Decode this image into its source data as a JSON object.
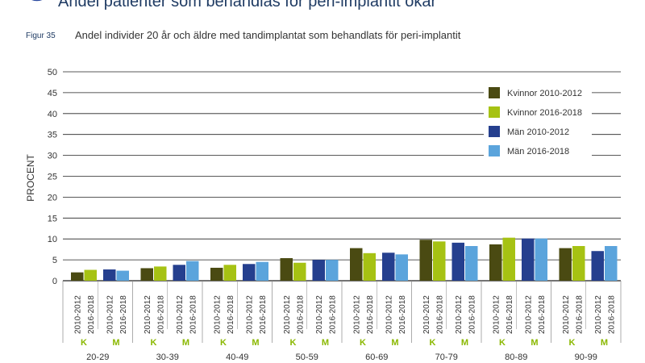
{
  "header": {
    "heading": "Andel patienter som behandlas för peri-implantit ökar",
    "figure_label": "Figur 35",
    "figure_caption": "Andel individer 20 år och äldre med tandimplantat som behandlats för peri-implantit"
  },
  "colors": {
    "axis_text": "#333333",
    "grid": "#222222",
    "group_divider": "#888888",
    "sex_label": "#8ab800",
    "title": "#1f3b63"
  },
  "chart_data": {
    "type": "bar",
    "ylabel": "PROCENT",
    "ylim": [
      0,
      50
    ],
    "y_ticks": [
      0,
      5,
      10,
      15,
      20,
      25,
      30,
      35,
      40,
      45,
      50
    ],
    "grid": true,
    "legend_position": "top-right",
    "categories": [
      "20-29",
      "30-39",
      "40-49",
      "50-59",
      "60-69",
      "70-79",
      "80-89",
      "90-99"
    ],
    "sex_labels": [
      "K",
      "M"
    ],
    "period_labels": [
      "2010-2012",
      "2016-2018"
    ],
    "series": [
      {
        "name": "Kvinnor 2010-2012",
        "color": "#4a4a12",
        "values": [
          2.0,
          3.0,
          3.1,
          5.4,
          7.8,
          9.8,
          8.7,
          7.8
        ]
      },
      {
        "name": "Kvinnor 2016-2018",
        "color": "#a6c213",
        "values": [
          2.6,
          3.4,
          3.8,
          4.3,
          6.6,
          9.4,
          10.3,
          8.3
        ]
      },
      {
        "name": "Män 2010-2012",
        "color": "#253f8e",
        "values": [
          2.7,
          3.8,
          4.0,
          5.0,
          6.7,
          9.1,
          10.1,
          7.1
        ]
      },
      {
        "name": "Män 2016-2018",
        "color": "#5ba4dc",
        "values": [
          2.4,
          4.7,
          4.5,
          5.0,
          6.3,
          8.3,
          10.1,
          8.3
        ]
      }
    ]
  }
}
